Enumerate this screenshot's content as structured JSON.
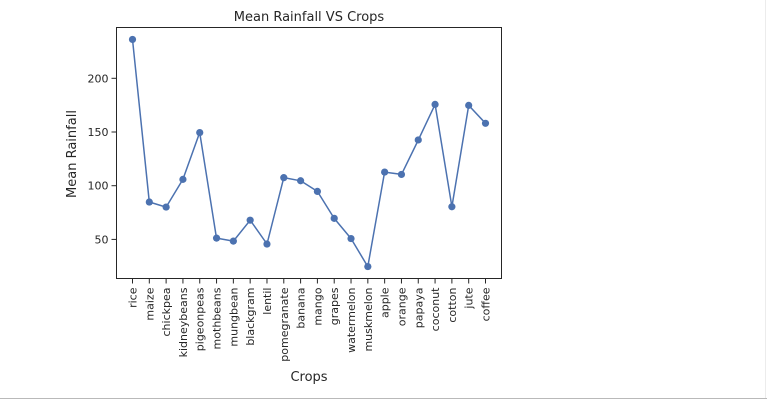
{
  "chart_data": {
    "type": "line",
    "title": "Mean Rainfall VS Crops",
    "xlabel": "Crops",
    "ylabel": "Mean Rainfall",
    "categories": [
      "rice",
      "maize",
      "chickpea",
      "kidneybeans",
      "pigeonpeas",
      "mothbeans",
      "mungbean",
      "blackgram",
      "lentil",
      "pomegranate",
      "banana",
      "mango",
      "grapes",
      "watermelon",
      "muskmelon",
      "apple",
      "orange",
      "papaya",
      "coconut",
      "cotton",
      "jute",
      "coffee"
    ],
    "series": [
      {
        "values": [
          236.2,
          84.8,
          80.1,
          105.9,
          149.5,
          51.2,
          48.4,
          67.9,
          45.7,
          107.5,
          104.6,
          94.7,
          69.6,
          50.8,
          24.7,
          112.7,
          110.5,
          142.6,
          175.7,
          80.4,
          174.8,
          158.1
        ]
      }
    ],
    "yticks": [
      50,
      100,
      150,
      200
    ],
    "ylim": [
      13.6,
      247.3
    ],
    "grid": false,
    "legend": "none",
    "colors": {
      "line": "#4c72b0",
      "axis": "#262626"
    }
  }
}
